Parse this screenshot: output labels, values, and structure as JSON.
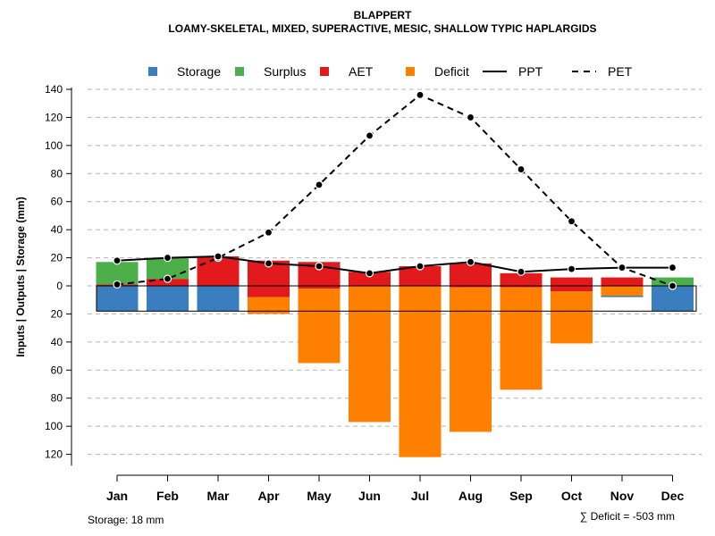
{
  "chart_data": {
    "type": "bar",
    "title": "BLAPPERT",
    "subtitle": "LOAMY-SKELETAL, MIXED, SUPERACTIVE, MESIC, SHALLOW TYPIC HAPLARGIDS",
    "ylabel": "Inputs | Outputs | Storage    (mm)",
    "categories": [
      "Jan",
      "Feb",
      "Mar",
      "Apr",
      "May",
      "Jun",
      "Jul",
      "Aug",
      "Sep",
      "Oct",
      "Nov",
      "Dec"
    ],
    "ylim": [
      -128,
      140
    ],
    "yticks": [
      140,
      120,
      100,
      80,
      60,
      40,
      20,
      0,
      -20,
      -40,
      -60,
      -80,
      -100,
      -120
    ],
    "ytick_labels": [
      "140",
      "120",
      "100",
      "80",
      "60",
      "40",
      "20",
      "0",
      "20",
      "40",
      "60",
      "80",
      "100",
      "120"
    ],
    "grid": true,
    "legend_position": "top",
    "legend": [
      {
        "key": "storage",
        "label": "Storage",
        "kind": "box"
      },
      {
        "key": "surplus",
        "label": "Surplus",
        "kind": "box"
      },
      {
        "key": "aet",
        "label": "AET",
        "kind": "box"
      },
      {
        "key": "deficit",
        "label": "Deficit",
        "kind": "box"
      },
      {
        "key": "ppt",
        "label": "PPT",
        "kind": "solid"
      },
      {
        "key": "pet",
        "label": "PET",
        "kind": "dashed"
      }
    ],
    "colors": {
      "storage": "#3a7ebf",
      "surplus": "#4daf4a",
      "aet": "#e31a1c",
      "deficit": "#ff7f00",
      "line": "#000000",
      "grid": "#b3b3b3"
    },
    "series": [
      {
        "name": "Storage",
        "key": "storage",
        "values": [
          18,
          18,
          18,
          0,
          0,
          0,
          0,
          0,
          0,
          0,
          8,
          18
        ]
      },
      {
        "name": "Surplus",
        "key": "surplus",
        "values": [
          16,
          15,
          0,
          0,
          0,
          0,
          0,
          0,
          0,
          0,
          0,
          6
        ]
      },
      {
        "name": "AET",
        "key": "aet",
        "values": [
          1,
          5,
          21,
          26,
          19,
          10,
          14,
          17,
          10,
          10,
          6,
          0
        ]
      },
      {
        "name": "Deficit",
        "key": "deficit",
        "values": [
          0,
          0,
          0,
          12,
          53,
          97,
          122,
          103,
          73,
          37,
          7,
          0
        ]
      },
      {
        "name": "PPT",
        "key": "ppt",
        "values": [
          18,
          20,
          21,
          16,
          14,
          9,
          14,
          17,
          10,
          12,
          13,
          13
        ]
      },
      {
        "name": "PET",
        "key": "pet",
        "values": [
          1,
          5,
          20,
          38,
          72,
          107,
          136,
          120,
          83,
          46,
          13,
          0
        ]
      }
    ],
    "storage_capacity": 18,
    "aet_negative_portion": [
      0,
      0,
      0,
      8,
      2,
      0,
      0,
      1,
      1,
      4,
      0,
      0
    ],
    "footer_left": "Storage: 18 mm",
    "footer_right": "∑ Deficit = -503 mm"
  }
}
